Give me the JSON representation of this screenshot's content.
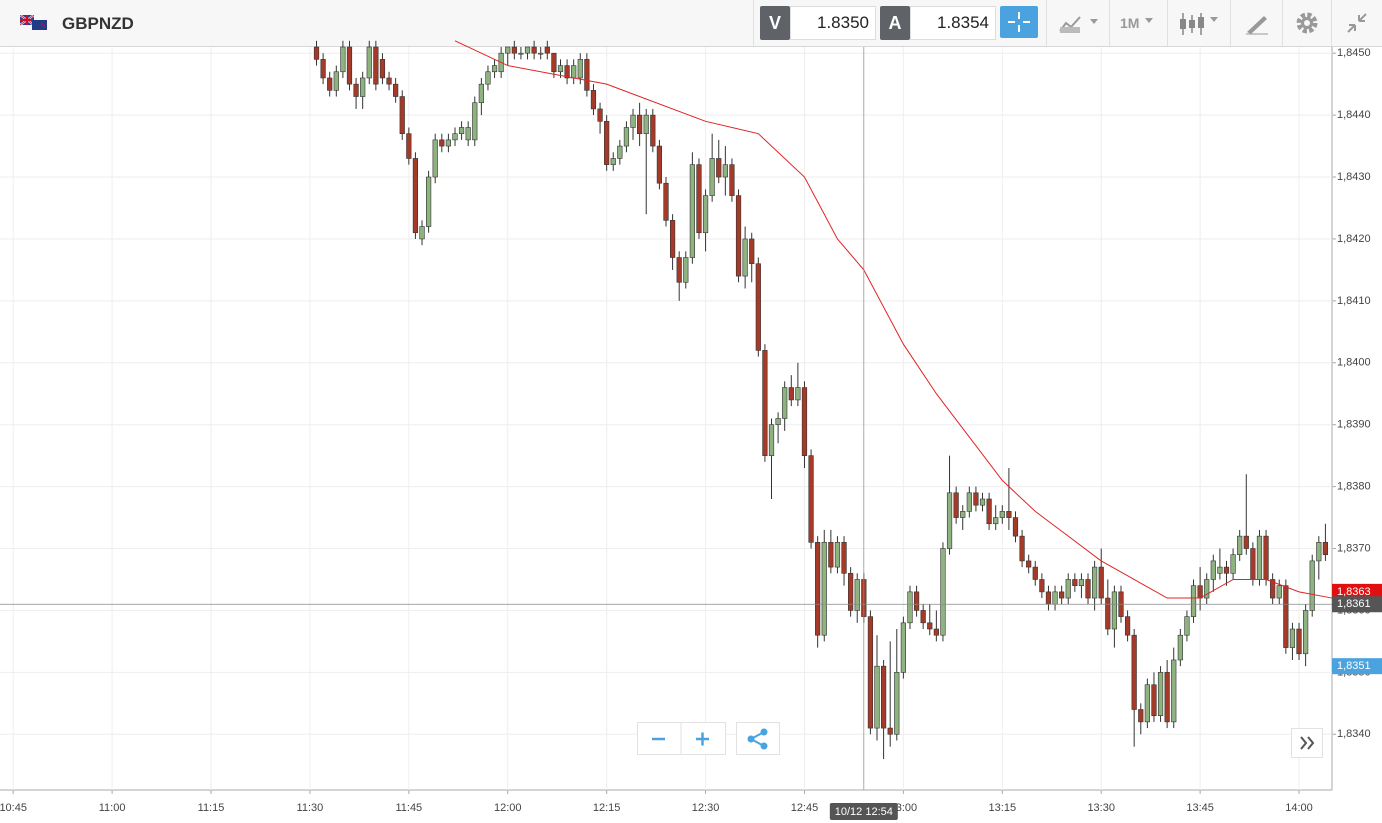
{
  "header": {
    "symbol": "GBPNZD",
    "bid_label": "V",
    "bid": "1.8350",
    "ask_label": "A",
    "ask": "1.8354",
    "timeframe": "1M"
  },
  "chart_data": {
    "type": "candlestick",
    "ylim": [
      1.8331,
      1.8451
    ],
    "yticks": [
      {
        "value": 1.834,
        "label": "1,8340"
      },
      {
        "value": 1.835,
        "label": "1,8350"
      },
      {
        "value": 1.836,
        "label": "1,8360"
      },
      {
        "value": 1.837,
        "label": "1,8370"
      },
      {
        "value": 1.838,
        "label": "1,8380"
      },
      {
        "value": 1.839,
        "label": "1,8390"
      },
      {
        "value": 1.84,
        "label": "1,8400"
      },
      {
        "value": 1.841,
        "label": "1,8410"
      },
      {
        "value": 1.842,
        "label": "1,8420"
      },
      {
        "value": 1.843,
        "label": "1,8430"
      },
      {
        "value": 1.844,
        "label": "1,8440"
      },
      {
        "value": 1.845,
        "label": "1,8450"
      }
    ],
    "xlim": [
      "10:43",
      "14:05"
    ],
    "xticks": [
      "10:45",
      "11:00",
      "11:15",
      "11:30",
      "11:45",
      "12:00",
      "12:15",
      "12:30",
      "12:45",
      "13:00",
      "13:15",
      "13:30",
      "13:45",
      "14:00"
    ],
    "grid": true,
    "up_color": "#8fb380",
    "down_color": "#a63a28",
    "x": [
      "11:31",
      "11:32",
      "11:33",
      "11:34",
      "11:35",
      "11:36",
      "11:37",
      "11:38",
      "11:39",
      "11:40",
      "11:41",
      "11:42",
      "11:43",
      "11:44",
      "11:45",
      "11:46",
      "11:47",
      "11:48",
      "11:49",
      "11:50",
      "11:51",
      "11:52",
      "11:53",
      "11:54",
      "11:55",
      "11:56",
      "11:57",
      "11:58",
      "11:59",
      "12:00",
      "12:01",
      "12:02",
      "12:03",
      "12:04",
      "12:05",
      "12:06",
      "12:07",
      "12:08",
      "12:09",
      "12:10",
      "12:11",
      "12:12",
      "12:13",
      "12:14",
      "12:15",
      "12:16",
      "12:17",
      "12:18",
      "12:19",
      "12:20",
      "12:21",
      "12:22",
      "12:23",
      "12:24",
      "12:25",
      "12:26",
      "12:27",
      "12:28",
      "12:29",
      "12:30",
      "12:31",
      "12:32",
      "12:33",
      "12:34",
      "12:35",
      "12:36",
      "12:37",
      "12:38",
      "12:39",
      "12:40",
      "12:41",
      "12:42",
      "12:43",
      "12:44",
      "12:45",
      "12:46",
      "12:47",
      "12:48",
      "12:49",
      "12:50",
      "12:51",
      "12:52",
      "12:53",
      "12:54",
      "12:55",
      "12:56",
      "12:57",
      "12:58",
      "12:59",
      "13:00",
      "13:01",
      "13:02",
      "13:03",
      "13:04",
      "13:05",
      "13:06",
      "13:07",
      "13:08",
      "13:09",
      "13:10",
      "13:11",
      "13:12",
      "13:13",
      "13:14",
      "13:15",
      "13:16",
      "13:17",
      "13:18",
      "13:19",
      "13:20",
      "13:21",
      "13:22",
      "13:23",
      "13:24",
      "13:25",
      "13:26",
      "13:27",
      "13:28",
      "13:29",
      "13:30",
      "13:31",
      "13:32",
      "13:33",
      "13:34",
      "13:35",
      "13:36",
      "13:37",
      "13:38",
      "13:39",
      "13:40",
      "13:41",
      "13:42",
      "13:43",
      "13:44",
      "13:45",
      "13:46",
      "13:47",
      "13:48",
      "13:49",
      "13:50",
      "13:51",
      "13:52",
      "13:53",
      "13:54",
      "13:55",
      "13:56",
      "13:57",
      "13:58",
      "13:59",
      "14:00",
      "14:01",
      "14:02",
      "14:03",
      "14:04"
    ],
    "ohlc": [
      [
        1.8451,
        1.8452,
        1.8448,
        1.8449
      ],
      [
        1.8449,
        1.845,
        1.8445,
        1.8446
      ],
      [
        1.8446,
        1.8447,
        1.8443,
        1.8444
      ],
      [
        1.8444,
        1.8448,
        1.8443,
        1.8447
      ],
      [
        1.8447,
        1.8452,
        1.8446,
        1.8451
      ],
      [
        1.8451,
        1.8452,
        1.8444,
        1.8445
      ],
      [
        1.8445,
        1.8446,
        1.8441,
        1.8443
      ],
      [
        1.8443,
        1.8447,
        1.8441,
        1.8446
      ],
      [
        1.8446,
        1.8452,
        1.8445,
        1.8451
      ],
      [
        1.8451,
        1.8452,
        1.8444,
        1.8445
      ],
      [
        1.8449,
        1.845,
        1.8445,
        1.8446
      ],
      [
        1.8446,
        1.8447,
        1.8444,
        1.8445
      ],
      [
        1.8445,
        1.8446,
        1.8442,
        1.8443
      ],
      [
        1.8443,
        1.8444,
        1.8436,
        1.8437
      ],
      [
        1.8437,
        1.8438,
        1.8432,
        1.8433
      ],
      [
        1.8433,
        1.8434,
        1.842,
        1.8421
      ],
      [
        1.842,
        1.8423,
        1.8419,
        1.8422
      ],
      [
        1.8422,
        1.8431,
        1.8421,
        1.843
      ],
      [
        1.843,
        1.8437,
        1.8429,
        1.8436
      ],
      [
        1.8436,
        1.8437,
        1.8434,
        1.8435
      ],
      [
        1.8435,
        1.8437,
        1.8434,
        1.8436
      ],
      [
        1.8436,
        1.8438,
        1.8435,
        1.8437
      ],
      [
        1.8437,
        1.8439,
        1.8436,
        1.8438
      ],
      [
        1.8436,
        1.8439,
        1.8435,
        1.8438
      ],
      [
        1.8436,
        1.8443,
        1.8435,
        1.8442
      ],
      [
        1.8442,
        1.8446,
        1.844,
        1.8445
      ],
      [
        1.8445,
        1.8448,
        1.8444,
        1.8447
      ],
      [
        1.8447,
        1.8449,
        1.8446,
        1.8448
      ],
      [
        1.8447,
        1.8451,
        1.8446,
        1.845
      ],
      [
        1.845,
        1.8451,
        1.8448,
        1.8451
      ],
      [
        1.8451,
        1.8452,
        1.8449,
        1.845
      ],
      [
        1.845,
        1.8451,
        1.8449,
        1.845
      ],
      [
        1.845,
        1.8451,
        1.8449,
        1.8451
      ],
      [
        1.8451,
        1.8452,
        1.8449,
        1.845
      ],
      [
        1.845,
        1.8451,
        1.8449,
        1.845
      ],
      [
        1.8451,
        1.8452,
        1.8449,
        1.845
      ],
      [
        1.845,
        1.845,
        1.8446,
        1.8447
      ],
      [
        1.8447,
        1.8449,
        1.8446,
        1.8448
      ],
      [
        1.8448,
        1.8449,
        1.8445,
        1.8446
      ],
      [
        1.8446,
        1.8449,
        1.8445,
        1.8448
      ],
      [
        1.8446,
        1.845,
        1.8445,
        1.8449
      ],
      [
        1.8449,
        1.845,
        1.8443,
        1.8444
      ],
      [
        1.8444,
        1.8445,
        1.844,
        1.8441
      ],
      [
        1.8441,
        1.8442,
        1.8437,
        1.8439
      ],
      [
        1.8439,
        1.844,
        1.8431,
        1.8432
      ],
      [
        1.8432,
        1.8434,
        1.8431,
        1.8433
      ],
      [
        1.8433,
        1.8436,
        1.8432,
        1.8435
      ],
      [
        1.8435,
        1.8439,
        1.8434,
        1.8438
      ],
      [
        1.8438,
        1.8441,
        1.8436,
        1.844
      ],
      [
        1.844,
        1.8442,
        1.8435,
        1.8437
      ],
      [
        1.8437,
        1.8441,
        1.8424,
        1.844
      ],
      [
        1.844,
        1.8441,
        1.8434,
        1.8435
      ],
      [
        1.8435,
        1.8436,
        1.8428,
        1.8429
      ],
      [
        1.8429,
        1.843,
        1.8422,
        1.8423
      ],
      [
        1.8423,
        1.8424,
        1.8415,
        1.8417
      ],
      [
        1.8417,
        1.8418,
        1.841,
        1.8413
      ],
      [
        1.8413,
        1.8418,
        1.8412,
        1.8417
      ],
      [
        1.8417,
        1.8434,
        1.8416,
        1.8432
      ],
      [
        1.8432,
        1.8433,
        1.842,
        1.8421
      ],
      [
        1.8421,
        1.8428,
        1.8418,
        1.8427
      ],
      [
        1.8427,
        1.8437,
        1.8426,
        1.8433
      ],
      [
        1.8433,
        1.8436,
        1.8429,
        1.843
      ],
      [
        1.843,
        1.8435,
        1.8427,
        1.8432
      ],
      [
        1.8432,
        1.8433,
        1.8426,
        1.8427
      ],
      [
        1.8427,
        1.8428,
        1.8413,
        1.8414
      ],
      [
        1.8414,
        1.8422,
        1.8412,
        1.842
      ],
      [
        1.842,
        1.8421,
        1.8413,
        1.8416
      ],
      [
        1.8416,
        1.8417,
        1.8401,
        1.8402
      ],
      [
        1.8402,
        1.8403,
        1.8384,
        1.8385
      ],
      [
        1.8385,
        1.8391,
        1.8378,
        1.839
      ],
      [
        1.839,
        1.8392,
        1.8387,
        1.8391
      ],
      [
        1.8391,
        1.8397,
        1.8389,
        1.8396
      ],
      [
        1.8396,
        1.8398,
        1.8393,
        1.8394
      ],
      [
        1.8394,
        1.84,
        1.8393,
        1.8396
      ],
      [
        1.8396,
        1.8397,
        1.8383,
        1.8385
      ],
      [
        1.8385,
        1.8386,
        1.837,
        1.8371
      ],
      [
        1.8371,
        1.8372,
        1.8354,
        1.8356
      ],
      [
        1.8356,
        1.8373,
        1.8355,
        1.8371
      ],
      [
        1.8371,
        1.8373,
        1.8366,
        1.8367
      ],
      [
        1.8367,
        1.8372,
        1.8366,
        1.8371
      ],
      [
        1.8371,
        1.8372,
        1.8364,
        1.8366
      ],
      [
        1.8366,
        1.8367,
        1.8359,
        1.836
      ],
      [
        1.836,
        1.8366,
        1.8358,
        1.8365
      ],
      [
        1.8365,
        1.8366,
        1.8358,
        1.8359
      ],
      [
        1.8359,
        1.836,
        1.834,
        1.8341
      ],
      [
        1.8341,
        1.8356,
        1.8339,
        1.8351
      ],
      [
        1.8351,
        1.8352,
        1.8336,
        1.8341
      ],
      [
        1.8341,
        1.8355,
        1.8338,
        1.834
      ],
      [
        1.834,
        1.8357,
        1.8339,
        1.835
      ],
      [
        1.835,
        1.8359,
        1.8349,
        1.8358
      ],
      [
        1.8358,
        1.8364,
        1.8357,
        1.8363
      ],
      [
        1.8363,
        1.8364,
        1.8359,
        1.836
      ],
      [
        1.836,
        1.8361,
        1.8357,
        1.8358
      ],
      [
        1.8358,
        1.8361,
        1.8356,
        1.8357
      ],
      [
        1.8357,
        1.836,
        1.8355,
        1.8356
      ],
      [
        1.8356,
        1.8371,
        1.8355,
        1.837
      ],
      [
        1.837,
        1.8385,
        1.8369,
        1.8379
      ],
      [
        1.8379,
        1.838,
        1.8374,
        1.8375
      ],
      [
        1.8375,
        1.8377,
        1.8373,
        1.8376
      ],
      [
        1.8376,
        1.838,
        1.8375,
        1.8379
      ],
      [
        1.8379,
        1.838,
        1.8376,
        1.8377
      ],
      [
        1.8377,
        1.8379,
        1.8376,
        1.8378
      ],
      [
        1.8378,
        1.8379,
        1.8373,
        1.8374
      ],
      [
        1.8374,
        1.8377,
        1.8373,
        1.8375
      ],
      [
        1.8375,
        1.8377,
        1.8374,
        1.8376
      ],
      [
        1.8376,
        1.8383,
        1.8373,
        1.8375
      ],
      [
        1.8375,
        1.8376,
        1.8371,
        1.8372
      ],
      [
        1.8372,
        1.8373,
        1.8367,
        1.8368
      ],
      [
        1.8368,
        1.8369,
        1.8366,
        1.8367
      ],
      [
        1.8367,
        1.8368,
        1.8364,
        1.8365
      ],
      [
        1.8365,
        1.8366,
        1.8362,
        1.8363
      ],
      [
        1.8363,
        1.8364,
        1.836,
        1.8361
      ],
      [
        1.8361,
        1.8364,
        1.836,
        1.8363
      ],
      [
        1.8363,
        1.8364,
        1.8361,
        1.8362
      ],
      [
        1.8362,
        1.8366,
        1.8361,
        1.8365
      ],
      [
        1.8365,
        1.8366,
        1.8363,
        1.8364
      ],
      [
        1.8364,
        1.8366,
        1.8362,
        1.8365
      ],
      [
        1.8365,
        1.8366,
        1.8361,
        1.8362
      ],
      [
        1.8362,
        1.8368,
        1.836,
        1.8367
      ],
      [
        1.8367,
        1.837,
        1.8361,
        1.8362
      ],
      [
        1.8362,
        1.8365,
        1.8356,
        1.8357
      ],
      [
        1.8357,
        1.8364,
        1.8354,
        1.8363
      ],
      [
        1.8363,
        1.8364,
        1.8358,
        1.8359
      ],
      [
        1.8359,
        1.836,
        1.8355,
        1.8356
      ],
      [
        1.8356,
        1.8357,
        1.8338,
        1.8344
      ],
      [
        1.8344,
        1.8345,
        1.834,
        1.8342
      ],
      [
        1.8342,
        1.8349,
        1.8341,
        1.8348
      ],
      [
        1.8348,
        1.835,
        1.8342,
        1.8343
      ],
      [
        1.8343,
        1.8351,
        1.8342,
        1.835
      ],
      [
        1.835,
        1.8352,
        1.8341,
        1.8342
      ],
      [
        1.8342,
        1.8354,
        1.8341,
        1.8352
      ],
      [
        1.8352,
        1.8357,
        1.8351,
        1.8356
      ],
      [
        1.8356,
        1.836,
        1.8355,
        1.8359
      ],
      [
        1.8359,
        1.8365,
        1.8358,
        1.8364
      ],
      [
        1.8364,
        1.8367,
        1.836,
        1.8362
      ],
      [
        1.8362,
        1.8366,
        1.8361,
        1.8365
      ],
      [
        1.8365,
        1.8369,
        1.8363,
        1.8368
      ],
      [
        1.8366,
        1.837,
        1.8365,
        1.8367
      ],
      [
        1.8367,
        1.8368,
        1.8364,
        1.8366
      ],
      [
        1.8366,
        1.837,
        1.8365,
        1.8369
      ],
      [
        1.8369,
        1.8373,
        1.8368,
        1.8372
      ],
      [
        1.8372,
        1.8382,
        1.8369,
        1.837
      ],
      [
        1.837,
        1.8371,
        1.8364,
        1.8365
      ],
      [
        1.8365,
        1.8373,
        1.8364,
        1.8372
      ],
      [
        1.8372,
        1.8373,
        1.8364,
        1.8365
      ],
      [
        1.8365,
        1.8366,
        1.8361,
        1.8362
      ],
      [
        1.8362,
        1.8365,
        1.8361,
        1.8364
      ],
      [
        1.8364,
        1.8365,
        1.8353,
        1.8354
      ],
      [
        1.8354,
        1.8358,
        1.8352,
        1.8357
      ],
      [
        1.8357,
        1.8358,
        1.8352,
        1.8353
      ],
      [
        1.8353,
        1.8361,
        1.8351,
        1.836
      ],
      [
        1.836,
        1.8369,
        1.8359,
        1.8368
      ],
      [
        1.8368,
        1.8372,
        1.8365,
        1.8371
      ],
      [
        1.8371,
        1.8374,
        1.8368,
        1.8369
      ]
    ],
    "ma": {
      "color": "#e02424",
      "x": [
        "11:52",
        "12:00",
        "12:15",
        "12:30",
        "12:38",
        "12:45",
        "12:50",
        "12:54",
        "13:00",
        "13:05",
        "13:10",
        "13:15",
        "13:20",
        "13:25",
        "13:30",
        "13:35",
        "13:40",
        "13:45",
        "13:50",
        "13:55",
        "14:00",
        "14:05"
      ],
      "values": [
        1.8452,
        1.8448,
        1.8445,
        1.8439,
        1.8437,
        1.843,
        1.842,
        1.8415,
        1.8403,
        1.8395,
        1.8388,
        1.8381,
        1.8376,
        1.8372,
        1.8368,
        1.8365,
        1.8362,
        1.8362,
        1.8365,
        1.8365,
        1.8363,
        1.8362
      ]
    },
    "crosshair": {
      "x": "12:54",
      "x_label": "10/12 12:54",
      "y": 1.8361
    },
    "price_tags": [
      {
        "value": 1.8363,
        "label": "1,8363",
        "color": "#e01010"
      },
      {
        "value": 1.8361,
        "label": "1,8361",
        "color": "#555555"
      },
      {
        "value": 1.8351,
        "label": "1,8351",
        "color": "#4aa3df"
      }
    ]
  }
}
